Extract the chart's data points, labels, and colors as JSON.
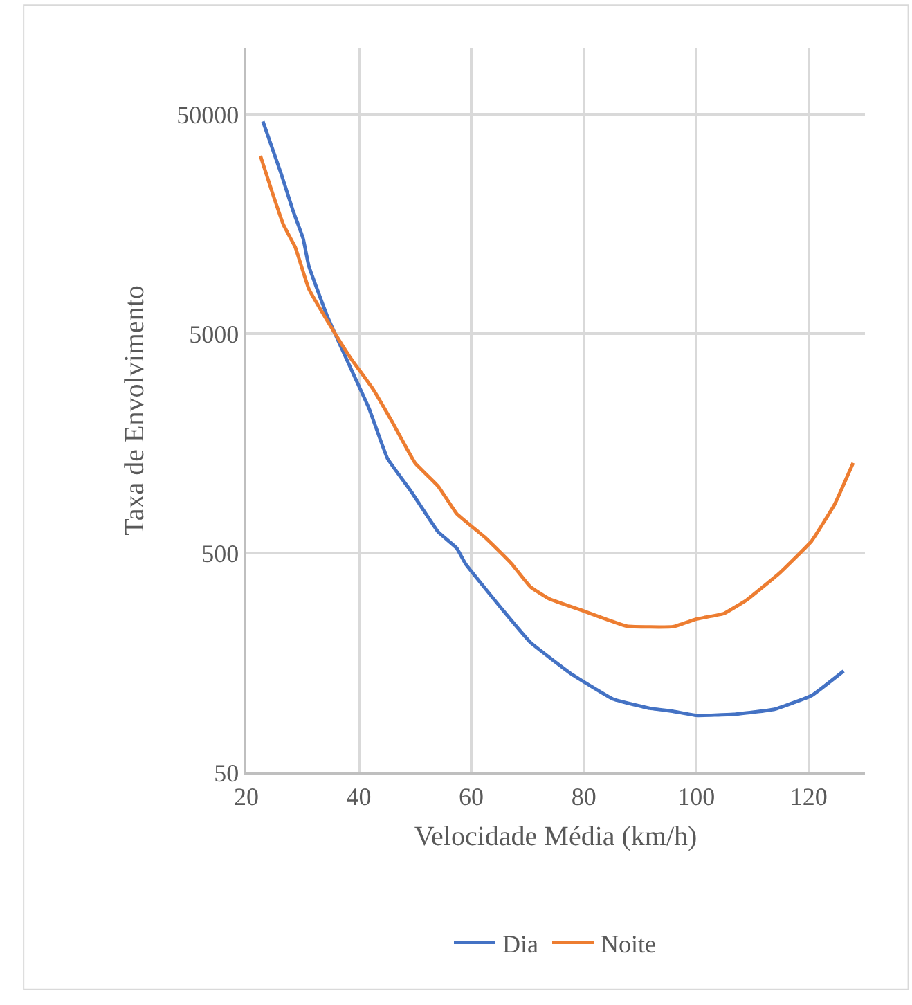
{
  "chart_data": {
    "type": "line",
    "xlabel": "Velocidade Média (km/h)",
    "ylabel": "Taxa de Envolvimento",
    "log": "y",
    "xlim": [
      20,
      130
    ],
    "xticks": [
      20,
      40,
      60,
      80,
      100,
      120
    ],
    "ylim": [
      50,
      100000
    ],
    "yticks": [
      50,
      500,
      5000,
      50000
    ],
    "grid": true,
    "legend": "bottom",
    "line_style": "solid",
    "marker": "none",
    "series": [
      {
        "name": "Dia",
        "color": "#4472c4",
        "x": [
          22.95,
          26.2,
          28.3,
          30.1,
          31.1,
          34.4,
          37.7,
          41.8,
          45.1,
          49.2,
          54.1,
          57.4,
          59.0,
          65.6,
          70.5,
          77.9,
          85.2,
          91.8,
          95.9,
          100.0,
          106.6,
          113.9,
          120.5,
          126.2
        ],
        "values": [
          46500,
          26800,
          18200,
          13600,
          10200,
          6010,
          3890,
          2290,
          1350,
          964,
          625,
          527,
          446,
          275,
          196,
          140,
          108,
          98,
          95,
          91,
          92,
          97,
          112,
          145
        ]
      },
      {
        "name": "Noite",
        "color": "#ed7d31",
        "x": [
          22.5,
          24.6,
          26.6,
          28.7,
          31.1,
          34.4,
          38.5,
          42.6,
          45.9,
          50.0,
          54.1,
          57.4,
          62.3,
          64.8,
          67.2,
          70.5,
          73.8,
          79.5,
          87.7,
          95.9,
          100.0,
          104.9,
          109.0,
          114.8,
          120.5,
          124.6,
          127.9
        ],
        "values": [
          32400,
          22100,
          15700,
          12400,
          8020,
          5730,
          3890,
          2780,
          1990,
          1290,
          1010,
          757,
          594,
          515,
          446,
          351,
          310,
          275,
          232,
          231,
          250,
          265,
          306,
          405,
          567,
          834,
          1290
        ]
      }
    ]
  }
}
